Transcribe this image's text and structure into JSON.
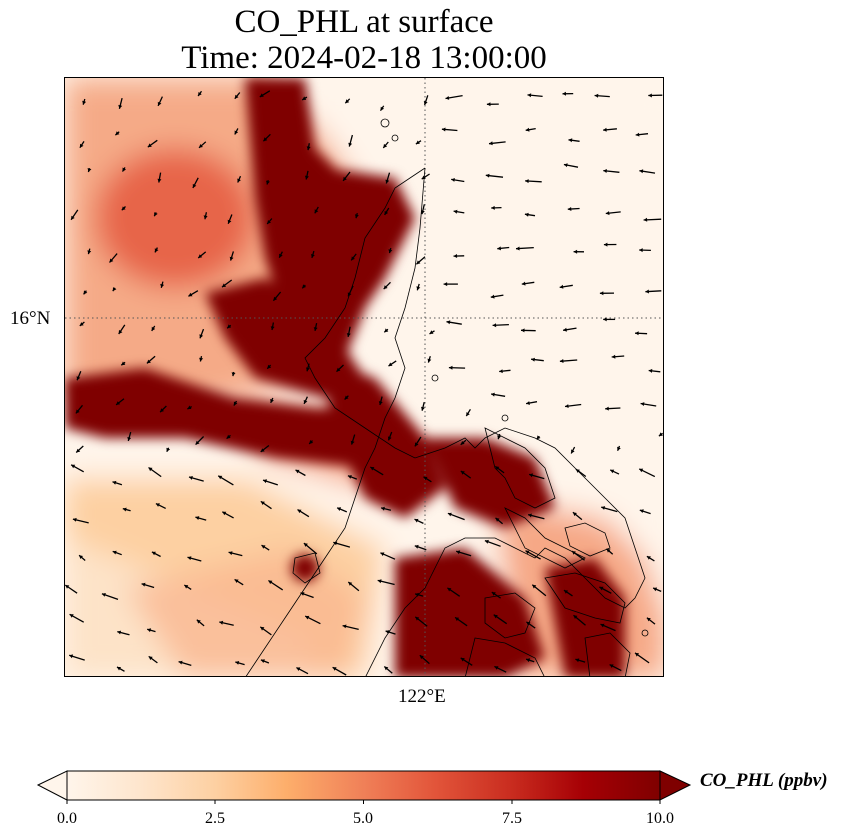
{
  "title": {
    "line1": "CO_PHL at surface",
    "line2": "Time: 2024-02-18 13:00:00"
  },
  "axes": {
    "lat_label": "16°N",
    "lon_label": "122°E"
  },
  "colorbar": {
    "label": "CO_PHL (ppbv)",
    "ticks": [
      "0.0",
      "2.5",
      "5.0",
      "7.5",
      "10.0"
    ],
    "min": 0,
    "max": 10,
    "extend": "both",
    "colormap": [
      "#fff5eb",
      "#fee6ce",
      "#fdd0a2",
      "#fdae6b",
      "#fd8d3c",
      "#f16913",
      "#d94801",
      "#a63603",
      "#7f2704"
    ]
  },
  "map": {
    "ocean_color": "#fff5eb",
    "saturated_color": "#7f0000",
    "gridlines": "dotted",
    "wind_vectors": true
  }
}
